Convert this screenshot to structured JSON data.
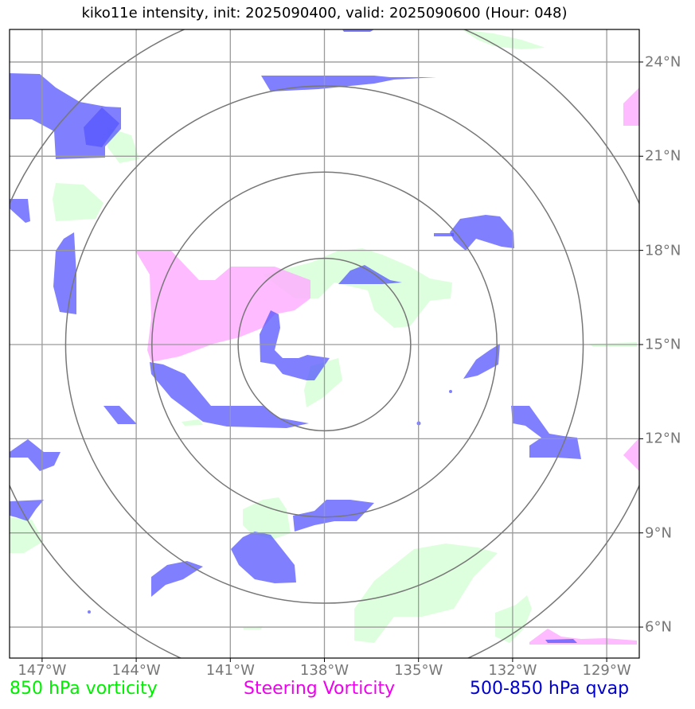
{
  "title": "kiko11e intensity, init: 2025090400, valid: 2025090600 (Hour: 048)",
  "lon_ticks": [
    {
      "lon": -147,
      "label": "147°W"
    },
    {
      "lon": -144,
      "label": "144°W"
    },
    {
      "lon": -141,
      "label": "141°W"
    },
    {
      "lon": -138,
      "label": "138°W"
    },
    {
      "lon": -135,
      "label": "135°W"
    },
    {
      "lon": -132,
      "label": "132°W"
    },
    {
      "lon": -129,
      "label": "129°W"
    }
  ],
  "lat_ticks": [
    {
      "lat": 6,
      "label": "6°N"
    },
    {
      "lat": 9,
      "label": "9°N"
    },
    {
      "lat": 12,
      "label": "12°N"
    },
    {
      "lat": 15,
      "label": "15°N"
    },
    {
      "lat": 18,
      "label": "18°N"
    },
    {
      "lat": 21,
      "label": "21°N"
    },
    {
      "lat": 24,
      "label": "24°N"
    }
  ],
  "legend": {
    "vorticity_850": {
      "label": "850 hPa vorticity",
      "color": "#00ee00"
    },
    "steering_vorticity": {
      "label": "Steering Vorticity",
      "color": "#ee00ee"
    },
    "qvap_500_850": {
      "label": "500-850 hPa qvap",
      "color": "#0000cc"
    }
  },
  "center": {
    "lon": -138,
    "lat": 15
  },
  "range_rings_deg": [
    2.75,
    5.5,
    8.25,
    11
  ]
}
